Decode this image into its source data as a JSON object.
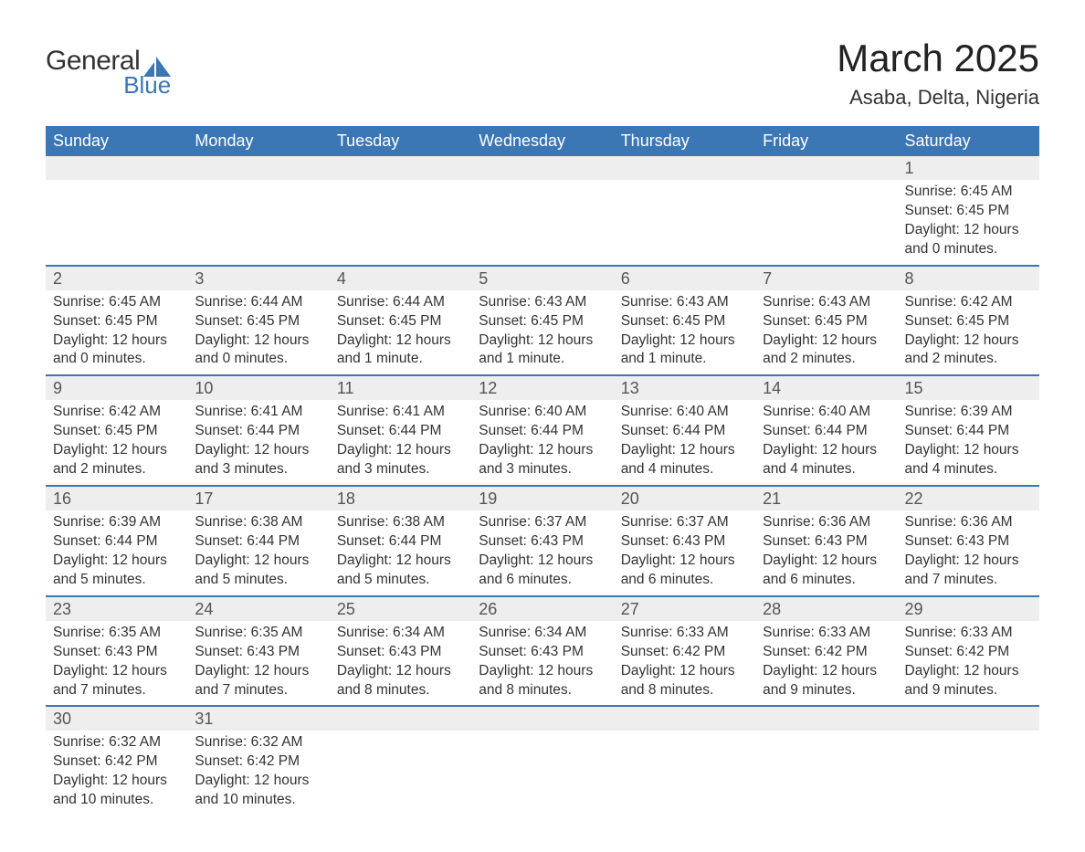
{
  "logo": {
    "text1": "General",
    "text2": "Blue",
    "sail_color": "#3b76b5"
  },
  "title": "March 2025",
  "location": "Asaba, Delta, Nigeria",
  "colors": {
    "header_bg": "#3b76b5",
    "header_text": "#ffffff",
    "row_divider": "#3b76b5",
    "daynum_bg": "#eeeeee",
    "body_text": "#333333"
  },
  "weekdays": [
    "Sunday",
    "Monday",
    "Tuesday",
    "Wednesday",
    "Thursday",
    "Friday",
    "Saturday"
  ],
  "weeks": [
    [
      null,
      null,
      null,
      null,
      null,
      null,
      {
        "n": "1",
        "sr": "Sunrise: 6:45 AM",
        "ss": "Sunset: 6:45 PM",
        "d1": "Daylight: 12 hours",
        "d2": "and 0 minutes."
      }
    ],
    [
      {
        "n": "2",
        "sr": "Sunrise: 6:45 AM",
        "ss": "Sunset: 6:45 PM",
        "d1": "Daylight: 12 hours",
        "d2": "and 0 minutes."
      },
      {
        "n": "3",
        "sr": "Sunrise: 6:44 AM",
        "ss": "Sunset: 6:45 PM",
        "d1": "Daylight: 12 hours",
        "d2": "and 0 minutes."
      },
      {
        "n": "4",
        "sr": "Sunrise: 6:44 AM",
        "ss": "Sunset: 6:45 PM",
        "d1": "Daylight: 12 hours",
        "d2": "and 1 minute."
      },
      {
        "n": "5",
        "sr": "Sunrise: 6:43 AM",
        "ss": "Sunset: 6:45 PM",
        "d1": "Daylight: 12 hours",
        "d2": "and 1 minute."
      },
      {
        "n": "6",
        "sr": "Sunrise: 6:43 AM",
        "ss": "Sunset: 6:45 PM",
        "d1": "Daylight: 12 hours",
        "d2": "and 1 minute."
      },
      {
        "n": "7",
        "sr": "Sunrise: 6:43 AM",
        "ss": "Sunset: 6:45 PM",
        "d1": "Daylight: 12 hours",
        "d2": "and 2 minutes."
      },
      {
        "n": "8",
        "sr": "Sunrise: 6:42 AM",
        "ss": "Sunset: 6:45 PM",
        "d1": "Daylight: 12 hours",
        "d2": "and 2 minutes."
      }
    ],
    [
      {
        "n": "9",
        "sr": "Sunrise: 6:42 AM",
        "ss": "Sunset: 6:45 PM",
        "d1": "Daylight: 12 hours",
        "d2": "and 2 minutes."
      },
      {
        "n": "10",
        "sr": "Sunrise: 6:41 AM",
        "ss": "Sunset: 6:44 PM",
        "d1": "Daylight: 12 hours",
        "d2": "and 3 minutes."
      },
      {
        "n": "11",
        "sr": "Sunrise: 6:41 AM",
        "ss": "Sunset: 6:44 PM",
        "d1": "Daylight: 12 hours",
        "d2": "and 3 minutes."
      },
      {
        "n": "12",
        "sr": "Sunrise: 6:40 AM",
        "ss": "Sunset: 6:44 PM",
        "d1": "Daylight: 12 hours",
        "d2": "and 3 minutes."
      },
      {
        "n": "13",
        "sr": "Sunrise: 6:40 AM",
        "ss": "Sunset: 6:44 PM",
        "d1": "Daylight: 12 hours",
        "d2": "and 4 minutes."
      },
      {
        "n": "14",
        "sr": "Sunrise: 6:40 AM",
        "ss": "Sunset: 6:44 PM",
        "d1": "Daylight: 12 hours",
        "d2": "and 4 minutes."
      },
      {
        "n": "15",
        "sr": "Sunrise: 6:39 AM",
        "ss": "Sunset: 6:44 PM",
        "d1": "Daylight: 12 hours",
        "d2": "and 4 minutes."
      }
    ],
    [
      {
        "n": "16",
        "sr": "Sunrise: 6:39 AM",
        "ss": "Sunset: 6:44 PM",
        "d1": "Daylight: 12 hours",
        "d2": "and 5 minutes."
      },
      {
        "n": "17",
        "sr": "Sunrise: 6:38 AM",
        "ss": "Sunset: 6:44 PM",
        "d1": "Daylight: 12 hours",
        "d2": "and 5 minutes."
      },
      {
        "n": "18",
        "sr": "Sunrise: 6:38 AM",
        "ss": "Sunset: 6:44 PM",
        "d1": "Daylight: 12 hours",
        "d2": "and 5 minutes."
      },
      {
        "n": "19",
        "sr": "Sunrise: 6:37 AM",
        "ss": "Sunset: 6:43 PM",
        "d1": "Daylight: 12 hours",
        "d2": "and 6 minutes."
      },
      {
        "n": "20",
        "sr": "Sunrise: 6:37 AM",
        "ss": "Sunset: 6:43 PM",
        "d1": "Daylight: 12 hours",
        "d2": "and 6 minutes."
      },
      {
        "n": "21",
        "sr": "Sunrise: 6:36 AM",
        "ss": "Sunset: 6:43 PM",
        "d1": "Daylight: 12 hours",
        "d2": "and 6 minutes."
      },
      {
        "n": "22",
        "sr": "Sunrise: 6:36 AM",
        "ss": "Sunset: 6:43 PM",
        "d1": "Daylight: 12 hours",
        "d2": "and 7 minutes."
      }
    ],
    [
      {
        "n": "23",
        "sr": "Sunrise: 6:35 AM",
        "ss": "Sunset: 6:43 PM",
        "d1": "Daylight: 12 hours",
        "d2": "and 7 minutes."
      },
      {
        "n": "24",
        "sr": "Sunrise: 6:35 AM",
        "ss": "Sunset: 6:43 PM",
        "d1": "Daylight: 12 hours",
        "d2": "and 7 minutes."
      },
      {
        "n": "25",
        "sr": "Sunrise: 6:34 AM",
        "ss": "Sunset: 6:43 PM",
        "d1": "Daylight: 12 hours",
        "d2": "and 8 minutes."
      },
      {
        "n": "26",
        "sr": "Sunrise: 6:34 AM",
        "ss": "Sunset: 6:43 PM",
        "d1": "Daylight: 12 hours",
        "d2": "and 8 minutes."
      },
      {
        "n": "27",
        "sr": "Sunrise: 6:33 AM",
        "ss": "Sunset: 6:42 PM",
        "d1": "Daylight: 12 hours",
        "d2": "and 8 minutes."
      },
      {
        "n": "28",
        "sr": "Sunrise: 6:33 AM",
        "ss": "Sunset: 6:42 PM",
        "d1": "Daylight: 12 hours",
        "d2": "and 9 minutes."
      },
      {
        "n": "29",
        "sr": "Sunrise: 6:33 AM",
        "ss": "Sunset: 6:42 PM",
        "d1": "Daylight: 12 hours",
        "d2": "and 9 minutes."
      }
    ],
    [
      {
        "n": "30",
        "sr": "Sunrise: 6:32 AM",
        "ss": "Sunset: 6:42 PM",
        "d1": "Daylight: 12 hours",
        "d2": "and 10 minutes."
      },
      {
        "n": "31",
        "sr": "Sunrise: 6:32 AM",
        "ss": "Sunset: 6:42 PM",
        "d1": "Daylight: 12 hours",
        "d2": "and 10 minutes."
      },
      null,
      null,
      null,
      null,
      null
    ]
  ]
}
